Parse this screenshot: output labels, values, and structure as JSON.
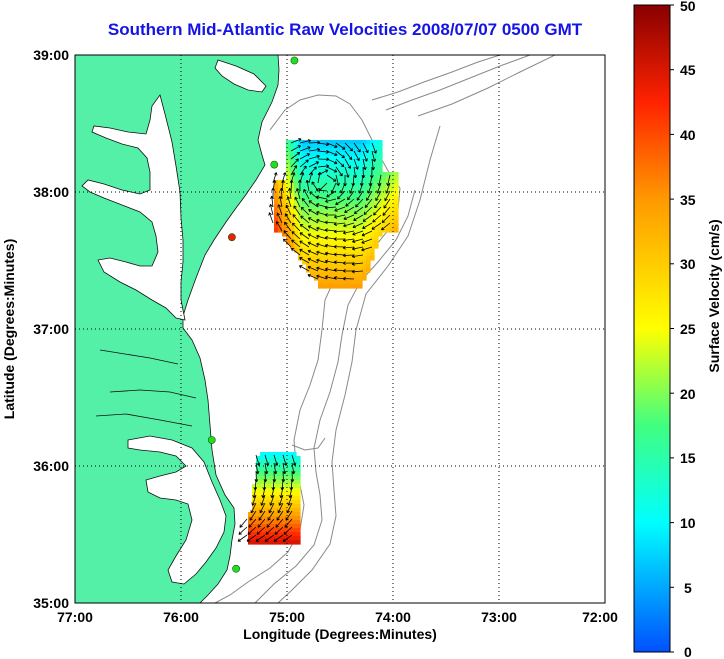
{
  "title": "Southern Mid-Atlantic Raw Velocities 2008/07/07 0500 GMT",
  "axes": {
    "xlabel": "Longitude (Degrees:Minutes)",
    "ylabel": "Latitude (Degrees:Minutes)",
    "x_ticks": [
      "77:00",
      "76:00",
      "75:00",
      "74:00",
      "73:00",
      "72:00"
    ],
    "y_ticks": [
      "39:00",
      "38:00",
      "37:00",
      "36:00",
      "35:00"
    ],
    "x_range_deg_west": [
      77,
      72
    ],
    "y_range_deg_north": [
      35,
      39
    ],
    "grid": "dotted"
  },
  "colorbar": {
    "label": "Surface Velocity (cm/s)",
    "ticks": [
      "50",
      "45",
      "40",
      "35",
      "30",
      "25",
      "20",
      "15",
      "10",
      "5",
      "0"
    ],
    "range": [
      0,
      50
    ],
    "colormap": "jet"
  },
  "colors": {
    "title": "#1414e6",
    "land": "#55f0a8",
    "station_green": "#22dd22",
    "station_red": "#ee2200",
    "bathymetry": "#8a8a8a"
  },
  "stations": [
    {
      "status": "active",
      "lon": -74.93,
      "lat": 38.96
    },
    {
      "status": "active",
      "lon": -75.12,
      "lat": 38.2
    },
    {
      "status": "inactive",
      "lon": -75.52,
      "lat": 37.67
    },
    {
      "status": "active",
      "lon": -75.71,
      "lat": 36.19
    },
    {
      "status": "active",
      "lon": -75.48,
      "lat": 35.25
    }
  ]
}
